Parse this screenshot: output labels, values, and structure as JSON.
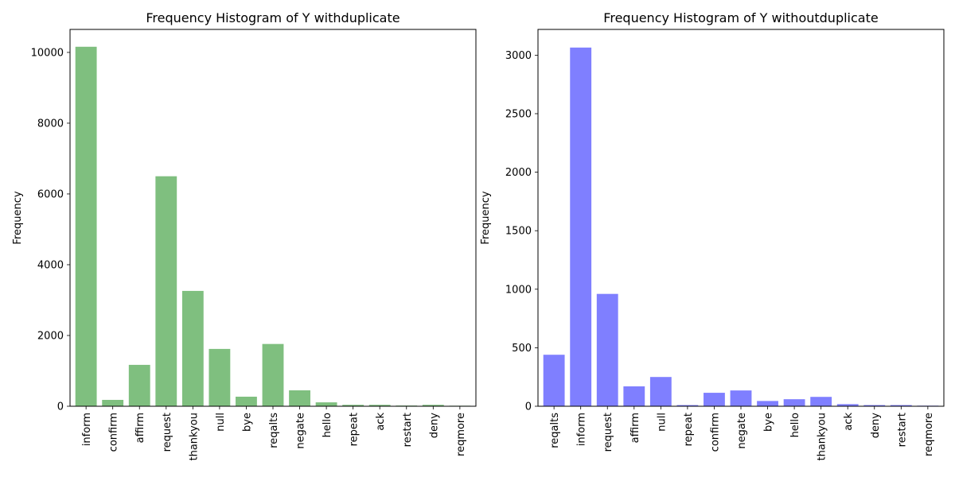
{
  "chart_data": [
    {
      "type": "bar",
      "title": "Frequency Histogram of Y withduplicate",
      "xlabel": "",
      "ylabel": "Frequency",
      "ylim": [
        0,
        10650
      ],
      "yticks": [
        0,
        2000,
        4000,
        6000,
        8000,
        10000
      ],
      "categories": [
        "inform",
        "confirm",
        "affirm",
        "request",
        "thankyou",
        "null",
        "bye",
        "reqalts",
        "negate",
        "hello",
        "repeat",
        "ack",
        "restart",
        "deny",
        "reqmore"
      ],
      "values": [
        10160,
        180,
        1170,
        6500,
        3260,
        1620,
        270,
        1760,
        450,
        110,
        40,
        40,
        20,
        40,
        15
      ],
      "color": "#7fbf7f",
      "grid": false
    },
    {
      "type": "bar",
      "title": "Frequency Histogram of Y withoutduplicate",
      "xlabel": "",
      "ylabel": "Frequency",
      "ylim": [
        0,
        3220
      ],
      "yticks": [
        0,
        500,
        1000,
        1500,
        2000,
        2500,
        3000
      ],
      "categories": [
        "reqalts",
        "inform",
        "request",
        "affirm",
        "null",
        "repeat",
        "confirm",
        "negate",
        "bye",
        "hello",
        "thankyou",
        "ack",
        "deny",
        "restart",
        "reqmore"
      ],
      "values": [
        440,
        3065,
        960,
        170,
        250,
        10,
        115,
        135,
        45,
        60,
        80,
        18,
        10,
        10,
        5
      ],
      "color": "#7f7fff",
      "grid": false
    }
  ]
}
